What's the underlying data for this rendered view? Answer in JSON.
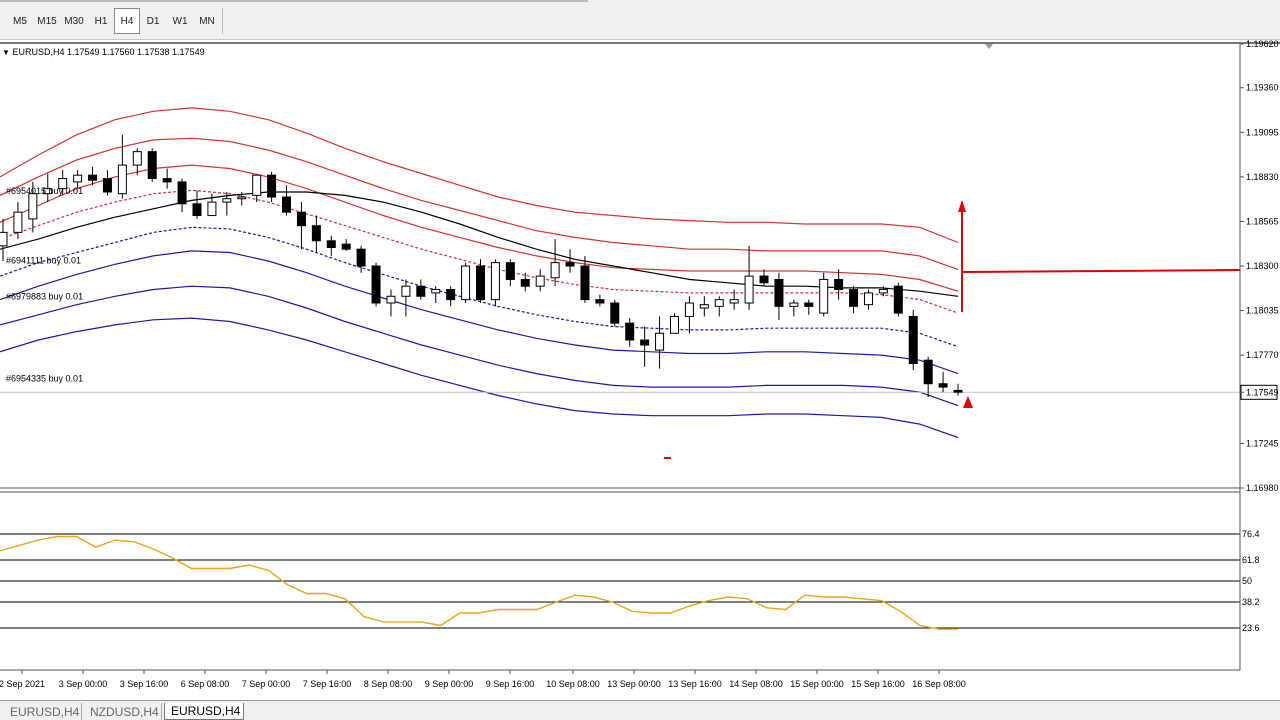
{
  "toolbar": {
    "timeframes": [
      "M5",
      "M15",
      "M30",
      "H1",
      "H4",
      "D1",
      "W1",
      "MN"
    ],
    "active": "H4"
  },
  "header": {
    "symbol_info": "EURUSD,H4  1.17549 1.17560 1.17538 1.17549"
  },
  "orders": [
    {
      "label": "#6954015 buy 0.01",
      "price": 1.18745
    },
    {
      "label": "#6941111 buy 0.01",
      "price": 1.18332
    },
    {
      "label": "#6979883 buy 0.01",
      "price": 1.18118
    },
    {
      "label": "#6954335 buy 0.01",
      "price": 1.1763
    }
  ],
  "tabs": [
    "EURUSD,H4",
    "NZDUSD,H4",
    "EURUSD,H4"
  ],
  "active_tab": 2,
  "colors": {
    "bull": "#ffffff",
    "bear": "#000000",
    "upper_band": "#d93030",
    "lower_band": "#1a1aa8",
    "ma": "#000000",
    "oscillator": "#e6a51e",
    "arrow": "#e00000"
  },
  "chart_data": [
    {
      "type": "candlestick",
      "symbol": "EURUSD",
      "timeframe": "H4",
      "ylim": [
        1.1698,
        1.1962
      ],
      "y_ticks": [
        "1.19620",
        "1.19360",
        "1.19095",
        "1.18830",
        "1.18565",
        "1.18300",
        "1.18035",
        "1.17770",
        "1.17549",
        "1.17245",
        "1.16980"
      ],
      "current_price": "1.17549",
      "x_ticks": [
        "2 Sep 2021",
        "3 Sep 00:00",
        "3 Sep 16:00",
        "6 Sep 08:00",
        "7 Sep 00:00",
        "7 Sep 16:00",
        "8 Sep 08:00",
        "9 Sep 00:00",
        "9 Sep 16:00",
        "10 Sep 08:00",
        "13 Sep 00:00",
        "13 Sep 16:00",
        "14 Sep 08:00",
        "15 Sep 00:00",
        "15 Sep 16:00",
        "16 Sep 08:00"
      ],
      "candles": [
        [
          1.1842,
          1.1858,
          1.1833,
          1.185
        ],
        [
          1.185,
          1.1868,
          1.1846,
          1.1862
        ],
        [
          1.1858,
          1.188,
          1.185,
          1.1873
        ],
        [
          1.1873,
          1.1885,
          1.1868,
          1.1876
        ],
        [
          1.1876,
          1.1887,
          1.1872,
          1.1882
        ],
        [
          1.188,
          1.1887,
          1.1876,
          1.1884
        ],
        [
          1.1884,
          1.1889,
          1.1878,
          1.1881
        ],
        [
          1.1882,
          1.1887,
          1.1872,
          1.1874
        ],
        [
          1.1873,
          1.1908,
          1.187,
          1.189
        ],
        [
          1.189,
          1.19,
          1.1884,
          1.1898
        ],
        [
          1.1898,
          1.19,
          1.188,
          1.1882
        ],
        [
          1.1882,
          1.1888,
          1.1876,
          1.188
        ],
        [
          1.188,
          1.1882,
          1.1862,
          1.1867
        ],
        [
          1.1867,
          1.1875,
          1.1858,
          1.186
        ],
        [
          1.186,
          1.1873,
          1.186,
          1.1868
        ],
        [
          1.1868,
          1.1874,
          1.186,
          1.187
        ],
        [
          1.187,
          1.1874,
          1.1866,
          1.1871
        ],
        [
          1.1872,
          1.1884,
          1.1868,
          1.1884
        ],
        [
          1.1884,
          1.1886,
          1.1868,
          1.1871
        ],
        [
          1.1871,
          1.1878,
          1.186,
          1.1862
        ],
        [
          1.1862,
          1.1868,
          1.184,
          1.1854
        ],
        [
          1.1854,
          1.186,
          1.1838,
          1.1845
        ],
        [
          1.1845,
          1.1848,
          1.1836,
          1.1841
        ],
        [
          1.1843,
          1.1846,
          1.1839,
          1.184
        ],
        [
          1.184,
          1.1842,
          1.1826,
          1.183
        ],
        [
          1.183,
          1.1832,
          1.1806,
          1.1808
        ],
        [
          1.1808,
          1.1816,
          1.18,
          1.1812
        ],
        [
          1.1812,
          1.1822,
          1.18,
          1.1818
        ],
        [
          1.1818,
          1.1822,
          1.181,
          1.1812
        ],
        [
          1.1814,
          1.1818,
          1.1808,
          1.1816
        ],
        [
          1.1816,
          1.1818,
          1.1806,
          1.181
        ],
        [
          1.181,
          1.1832,
          1.1808,
          1.183
        ],
        [
          1.183,
          1.1834,
          1.1808,
          1.181
        ],
        [
          1.181,
          1.1834,
          1.1806,
          1.1832
        ],
        [
          1.1832,
          1.1834,
          1.1818,
          1.1822
        ],
        [
          1.1822,
          1.1826,
          1.1815,
          1.1818
        ],
        [
          1.1818,
          1.1828,
          1.1815,
          1.1824
        ],
        [
          1.1823,
          1.1846,
          1.1818,
          1.1832
        ],
        [
          1.1832,
          1.184,
          1.1826,
          1.183
        ],
        [
          1.183,
          1.1836,
          1.1808,
          1.181
        ],
        [
          1.181,
          1.1813,
          1.1806,
          1.1808
        ],
        [
          1.1808,
          1.181,
          1.1794,
          1.1796
        ],
        [
          1.1796,
          1.1799,
          1.1782,
          1.1786
        ],
        [
          1.1786,
          1.1794,
          1.177,
          1.1783
        ],
        [
          1.178,
          1.18,
          1.1769,
          1.179
        ],
        [
          1.179,
          1.1802,
          1.179,
          1.18
        ],
        [
          1.18,
          1.1812,
          1.179,
          1.1808
        ],
        [
          1.1805,
          1.1812,
          1.18,
          1.1807
        ],
        [
          1.1806,
          1.1812,
          1.18,
          1.181
        ],
        [
          1.1808,
          1.1816,
          1.1804,
          1.181
        ],
        [
          1.1808,
          1.1842,
          1.1804,
          1.1824
        ],
        [
          1.1824,
          1.1828,
          1.1818,
          1.182
        ],
        [
          1.1822,
          1.1826,
          1.1798,
          1.1806
        ],
        [
          1.1806,
          1.181,
          1.18,
          1.1808
        ],
        [
          1.1808,
          1.181,
          1.1801,
          1.1806
        ],
        [
          1.1802,
          1.1826,
          1.18,
          1.1822
        ],
        [
          1.1822,
          1.1828,
          1.181,
          1.1816
        ],
        [
          1.1816,
          1.1818,
          1.1802,
          1.1806
        ],
        [
          1.1807,
          1.1816,
          1.1804,
          1.1814
        ],
        [
          1.1814,
          1.1818,
          1.1812,
          1.1816
        ],
        [
          1.1818,
          1.182,
          1.18,
          1.1802
        ],
        [
          1.18,
          1.1804,
          1.1768,
          1.1772
        ],
        [
          1.1774,
          1.1776,
          1.1752,
          1.176
        ],
        [
          1.176,
          1.1767,
          1.1755,
          1.1758
        ],
        [
          1.1756,
          1.176,
          1.1753,
          1.1755
        ]
      ],
      "ma": [
        1.184,
        1.1846,
        1.1853,
        1.1859,
        1.1864,
        1.1869,
        1.1872,
        1.1874,
        1.1874,
        1.1872,
        1.1868,
        1.1862,
        1.1855,
        1.1847,
        1.184,
        1.1834,
        1.183,
        1.1826,
        1.1822,
        1.182,
        1.1818,
        1.1818,
        1.1817,
        1.1817,
        1.1815,
        1.1812
      ],
      "upper_bands": [
        [
          1.1883,
          1.1896,
          1.1908,
          1.1917,
          1.1922,
          1.1924,
          1.1922,
          1.1917,
          1.1909,
          1.19,
          1.1892,
          1.1885,
          1.1878,
          1.1871,
          1.1866,
          1.1862,
          1.186,
          1.1858,
          1.1857,
          1.1856,
          1.1856,
          1.1855,
          1.1855,
          1.1855,
          1.1853,
          1.1844
        ],
        [
          1.1872,
          1.1883,
          1.1893,
          1.19,
          1.1905,
          1.1906,
          1.1904,
          1.1899,
          1.1892,
          1.1884,
          1.1876,
          1.1869,
          1.1863,
          1.1857,
          1.1851,
          1.1847,
          1.1844,
          1.1842,
          1.184,
          1.184,
          1.1839,
          1.1839,
          1.1839,
          1.1839,
          1.1836,
          1.1828
        ],
        [
          1.1856,
          1.1866,
          1.1876,
          1.1883,
          1.1888,
          1.189,
          1.1888,
          1.1883,
          1.1876,
          1.1868,
          1.186,
          1.1853,
          1.1847,
          1.1841,
          1.1836,
          1.1832,
          1.1829,
          1.1828,
          1.1827,
          1.1827,
          1.1827,
          1.1827,
          1.1826,
          1.1825,
          1.1822,
          1.1815
        ],
        [
          1.1846,
          1.1854,
          1.1862,
          1.1868,
          1.1873,
          1.1875,
          1.1873,
          1.1868,
          1.1861,
          1.1854,
          1.1847,
          1.184,
          1.1834,
          1.1828,
          1.1823,
          1.1819,
          1.1816,
          1.1815,
          1.1814,
          1.1814,
          1.1814,
          1.1814,
          1.1814,
          1.1813,
          1.181,
          1.1802
        ]
      ],
      "lower_bands": [
        [
          1.1824,
          1.1832,
          1.1838,
          1.1844,
          1.185,
          1.1853,
          1.1852,
          1.1847,
          1.184,
          1.1832,
          1.1825,
          1.1818,
          1.1812,
          1.1806,
          1.1801,
          1.1797,
          1.1794,
          1.1793,
          1.1792,
          1.1792,
          1.1793,
          1.1793,
          1.1793,
          1.1793,
          1.179,
          1.1782
        ],
        [
          1.181,
          1.1818,
          1.1825,
          1.1831,
          1.1836,
          1.1839,
          1.1838,
          1.1833,
          1.1826,
          1.1818,
          1.1811,
          1.1804,
          1.1798,
          1.1792,
          1.1787,
          1.1783,
          1.178,
          1.1779,
          1.1778,
          1.1778,
          1.1779,
          1.1779,
          1.1778,
          1.1777,
          1.1774,
          1.1766
        ],
        [
          1.1795,
          1.1801,
          1.1807,
          1.1812,
          1.1816,
          1.1818,
          1.1817,
          1.1812,
          1.1805,
          1.1797,
          1.179,
          1.1783,
          1.1777,
          1.1771,
          1.1766,
          1.1762,
          1.1759,
          1.1758,
          1.1758,
          1.1758,
          1.1759,
          1.1759,
          1.1759,
          1.1758,
          1.1755,
          1.1747
        ],
        [
          1.1779,
          1.1786,
          1.1791,
          1.1795,
          1.1798,
          1.1799,
          1.1797,
          1.1792,
          1.1786,
          1.1779,
          1.1772,
          1.1765,
          1.1759,
          1.1753,
          1.1748,
          1.1744,
          1.1742,
          1.1741,
          1.1741,
          1.1741,
          1.1742,
          1.1742,
          1.1741,
          1.174,
          1.1736,
          1.1728
        ]
      ]
    },
    {
      "type": "line",
      "ylim": [
        0,
        100
      ],
      "levels": [
        "76.4",
        "61.8",
        "50",
        "38.2",
        "23.6"
      ],
      "level_values": [
        76.4,
        61.8,
        50,
        38.2,
        23.6
      ],
      "values": [
        67,
        70,
        73,
        75,
        75,
        69,
        73,
        72,
        68,
        63,
        57,
        57,
        57,
        59,
        56,
        48,
        43,
        43,
        40,
        30,
        27,
        27,
        27,
        25,
        32,
        32,
        34,
        34,
        34,
        38,
        42,
        41,
        38,
        33,
        32,
        32,
        36,
        39,
        41,
        40,
        35,
        34,
        42,
        41,
        41,
        40,
        39,
        33,
        25,
        23,
        23
      ]
    }
  ]
}
